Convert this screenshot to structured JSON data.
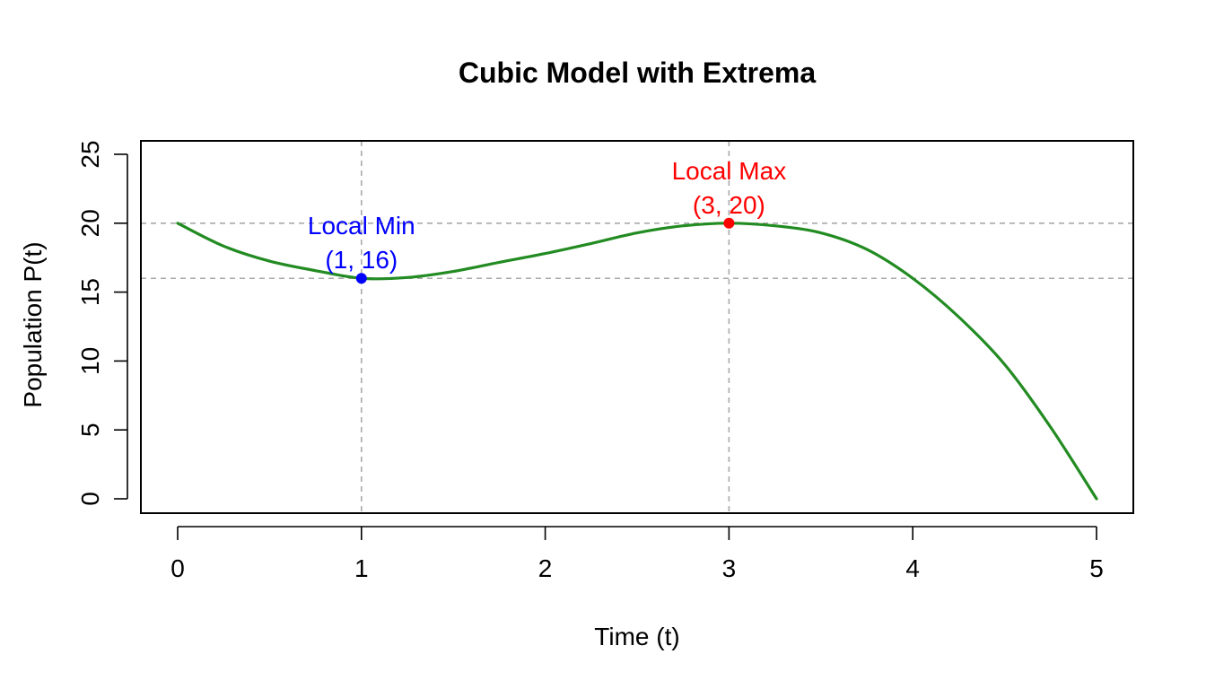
{
  "chart_data": {
    "type": "line",
    "title": "Cubic Model with Extrema",
    "xlabel": "Time (t)",
    "ylabel": "Population P(t)",
    "xlim": [
      0,
      5
    ],
    "ylim": [
      0,
      25
    ],
    "x_ticks": [
      "0",
      "1",
      "2",
      "3",
      "4",
      "5"
    ],
    "y_ticks": [
      "0",
      "5",
      "10",
      "15",
      "20",
      "25"
    ],
    "series": [
      {
        "x": [
          0,
          0.25,
          0.5,
          0.75,
          1,
          1.25,
          1.5,
          1.75,
          2,
          2.25,
          2.5,
          2.75,
          3,
          3.25,
          3.5,
          3.75,
          4,
          4.25,
          4.5,
          4.75,
          5
        ],
        "y": [
          20,
          18.34,
          17.25,
          16.56,
          16,
          16.06,
          16.5,
          17.16,
          17.8,
          18.53,
          19.3,
          19.81,
          20,
          19.81,
          19.3,
          18.1,
          16,
          13.2,
          9.75,
          5.2,
          0
        ],
        "color": "#228B22"
      }
    ],
    "points": [
      {
        "x": 1,
        "y": 16,
        "color": "#0000FF",
        "label_line1": "Local Min",
        "label_line2": "(1, 16)"
      },
      {
        "x": 3,
        "y": 20,
        "color": "#FF0000",
        "label_line1": "Local Max",
        "label_line2": "(3, 20)"
      }
    ],
    "reference_lines": {
      "horizontal": [
        20,
        16
      ],
      "vertical": [
        1,
        3
      ],
      "color": "#A9A9A9",
      "style": "dashed"
    },
    "grid": false,
    "legend": "none"
  }
}
